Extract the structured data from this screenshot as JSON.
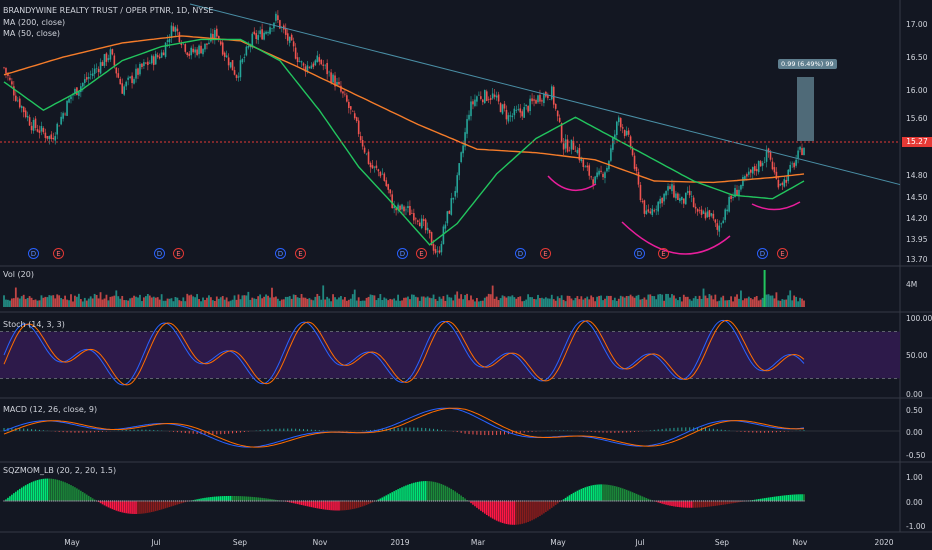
{
  "title": "BRANDYWINE REALTY TRUST / OPER PTNR, 1D, NYSE",
  "legend": {
    "ma200": "MA (200, close)",
    "ma50": "MA (50, close)",
    "vol": "Vol (20)",
    "stoch": "Stoch (14, 3, 3)",
    "macd": "MACD (12, 26, close, 9)",
    "sqz": "SQZMOM_LB (20, 2, 20, 1.5)"
  },
  "last_price": "15.27",
  "measure_label": "0.99 (6.49%) 99",
  "colors": {
    "bg": "#131722",
    "up": "#26a69a",
    "down": "#ef5350",
    "ma200": "#f57c2a",
    "ma50": "#22c55e",
    "trend": "#4a8fa6",
    "arcs": "#e91e9c",
    "stochBand": "#2d1a4a",
    "priceLine": "#e53935"
  },
  "price_axis": [
    "17.00",
    "16.50",
    "16.00",
    "15.60",
    "15.27",
    "14.80",
    "14.50",
    "14.20",
    "13.95",
    "13.70"
  ],
  "vol_axis": [
    "4M"
  ],
  "stoch_axis": [
    "100.00",
    "50.00",
    "0.00"
  ],
  "macd_axis": [
    "0.50",
    "0.00",
    "-0.50"
  ],
  "sqz_axis": [
    "1.00",
    "0.00",
    "-1.00"
  ],
  "x_axis": [
    "May",
    "Jul",
    "Sep",
    "Nov",
    "2019",
    "Mar",
    "May",
    "Jul",
    "Sep",
    "Nov",
    "2020"
  ],
  "events": [
    "D",
    "E",
    "D",
    "E",
    "D",
    "E",
    "D",
    "E",
    "D",
    "E",
    "D",
    "E",
    "D",
    "E"
  ],
  "chart_data": {
    "type": "candlestick",
    "title": "BRANDYWINE REALTY TRUST / OPER PTNR, 1D, NYSE",
    "price_ylim": [
      13.6,
      17.3
    ],
    "price_path": [
      [
        0,
        16.4
      ],
      [
        6,
        16.0
      ],
      [
        14,
        15.6
      ],
      [
        24,
        15.4
      ],
      [
        34,
        16.0
      ],
      [
        44,
        16.3
      ],
      [
        54,
        16.6
      ],
      [
        60,
        16.1
      ],
      [
        70,
        16.4
      ],
      [
        80,
        16.6
      ],
      [
        86,
        17.0
      ],
      [
        94,
        16.6
      ],
      [
        102,
        16.7
      ],
      [
        108,
        16.9
      ],
      [
        112,
        16.6
      ],
      [
        118,
        16.3
      ],
      [
        126,
        16.8
      ],
      [
        132,
        16.9
      ],
      [
        138,
        17.1
      ],
      [
        144,
        16.8
      ],
      [
        152,
        16.4
      ],
      [
        160,
        16.5
      ],
      [
        168,
        16.2
      ],
      [
        174,
        15.9
      ],
      [
        180,
        15.5
      ],
      [
        186,
        15.0
      ],
      [
        192,
        14.9
      ],
      [
        198,
        14.4
      ],
      [
        204,
        14.4
      ],
      [
        210,
        14.3
      ],
      [
        216,
        14.0
      ],
      [
        220,
        13.75
      ],
      [
        224,
        14.2
      ],
      [
        230,
        14.8
      ],
      [
        236,
        15.8
      ],
      [
        240,
        16.0
      ],
      [
        248,
        16.0
      ],
      [
        256,
        15.7
      ],
      [
        264,
        15.8
      ],
      [
        272,
        16.0
      ],
      [
        278,
        16.05
      ],
      [
        284,
        15.3
      ],
      [
        290,
        15.3
      ],
      [
        294,
        15.0
      ],
      [
        300,
        14.8
      ],
      [
        306,
        15.0
      ],
      [
        312,
        15.7
      ],
      [
        318,
        15.3
      ],
      [
        322,
        14.7
      ],
      [
        326,
        14.3
      ],
      [
        332,
        14.5
      ],
      [
        338,
        14.7
      ],
      [
        344,
        14.5
      ],
      [
        348,
        14.6
      ],
      [
        352,
        14.3
      ],
      [
        358,
        14.35
      ],
      [
        362,
        14.1
      ],
      [
        366,
        14.4
      ],
      [
        370,
        14.6
      ],
      [
        376,
        14.8
      ],
      [
        382,
        15.0
      ],
      [
        388,
        15.2
      ],
      [
        392,
        14.8
      ],
      [
        396,
        14.8
      ],
      [
        402,
        15.1
      ],
      [
        406,
        15.3
      ]
    ],
    "ma200_path": [
      [
        0,
        16.3
      ],
      [
        30,
        16.55
      ],
      [
        60,
        16.75
      ],
      [
        90,
        16.85
      ],
      [
        120,
        16.78
      ],
      [
        150,
        16.4
      ],
      [
        180,
        16.0
      ],
      [
        210,
        15.6
      ],
      [
        240,
        15.25
      ],
      [
        270,
        15.2
      ],
      [
        300,
        15.1
      ],
      [
        330,
        14.8
      ],
      [
        360,
        14.78
      ],
      [
        390,
        14.85
      ],
      [
        406,
        14.9
      ]
    ],
    "ma50_path": [
      [
        0,
        16.2
      ],
      [
        20,
        15.8
      ],
      [
        40,
        16.1
      ],
      [
        60,
        16.5
      ],
      [
        80,
        16.7
      ],
      [
        100,
        16.8
      ],
      [
        120,
        16.8
      ],
      [
        140,
        16.5
      ],
      [
        160,
        15.8
      ],
      [
        180,
        15.0
      ],
      [
        200,
        14.4
      ],
      [
        216,
        13.9
      ],
      [
        230,
        14.2
      ],
      [
        250,
        14.9
      ],
      [
        270,
        15.4
      ],
      [
        290,
        15.7
      ],
      [
        310,
        15.4
      ],
      [
        330,
        15.1
      ],
      [
        350,
        14.8
      ],
      [
        370,
        14.6
      ],
      [
        390,
        14.55
      ],
      [
        406,
        14.8
      ]
    ],
    "measure_pct": "6.49%",
    "volume_max_label": "4M",
    "stoch_ylim": [
      0,
      100
    ],
    "stoch_band": [
      20,
      80
    ],
    "macd_ylim": [
      -0.6,
      0.6
    ],
    "sqz_ylim": [
      -1.2,
      1.4
    ]
  }
}
